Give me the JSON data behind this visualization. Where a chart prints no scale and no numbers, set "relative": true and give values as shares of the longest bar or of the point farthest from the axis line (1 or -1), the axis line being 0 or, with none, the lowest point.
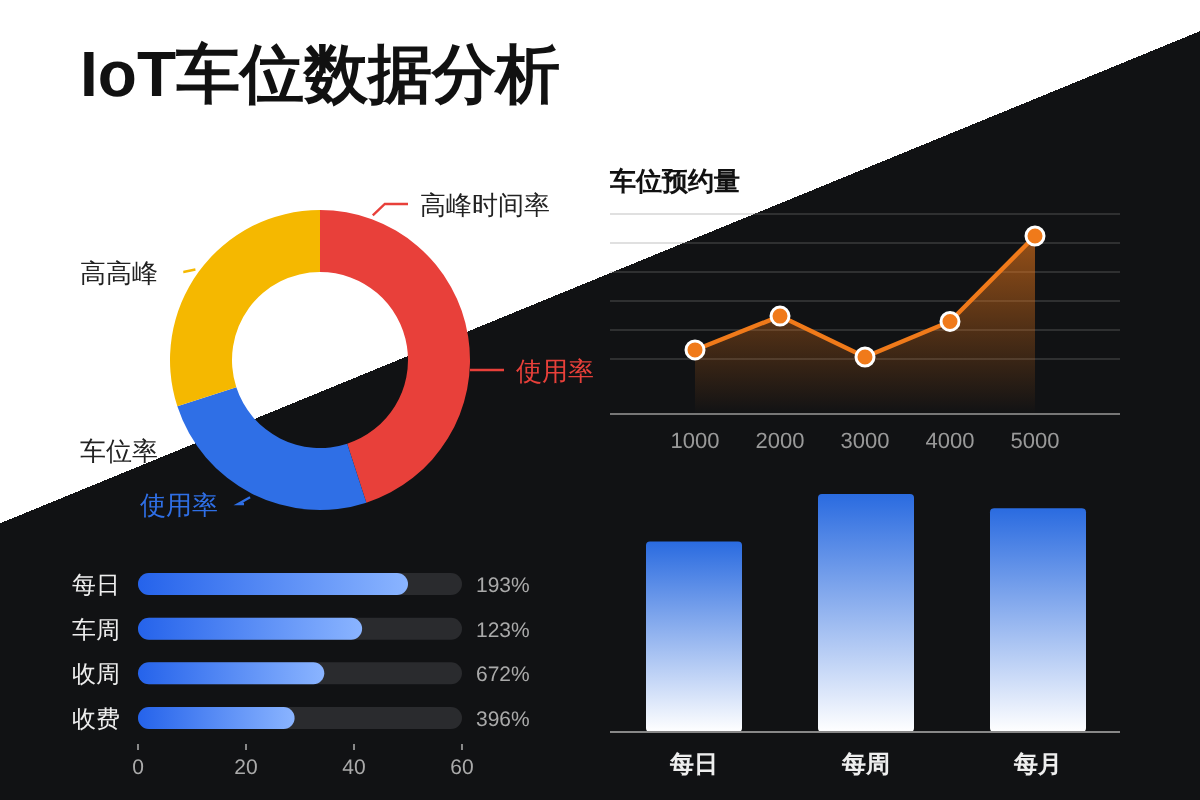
{
  "chart_data": [
    {
      "type": "donut",
      "title": "IoT车位数据分析",
      "categories": [
        "高峰时间率",
        "使用率",
        "高高峰"
      ],
      "values": [
        45,
        25,
        30
      ],
      "colors": [
        "#e8403a",
        "#2f6fe6",
        "#f5b800"
      ],
      "annotations": [
        "使用率",
        "车位率"
      ]
    },
    {
      "type": "area",
      "title": "车位预约量",
      "relative": true,
      "x": [
        1000,
        2000,
        3000,
        4000,
        5000
      ],
      "xlim": [
        0,
        6000
      ],
      "xticks": [
        1000,
        2000,
        3000,
        4000,
        5000
      ],
      "grid": "y",
      "marker": "circle",
      "series": [
        {
          "color": "#f07a1a",
          "values": [
            0.36,
            0.55,
            0.32,
            0.52,
            1
          ]
        }
      ]
    },
    {
      "type": "bar",
      "orientation": "horizontal",
      "categories": [
        "每日",
        "车周",
        "收周",
        "收费"
      ],
      "values": [
        50,
        41.5,
        34.5,
        29
      ],
      "color": "#3b82f6",
      "xlim": [
        0,
        60
      ],
      "xticks": [
        0,
        20,
        40,
        60
      ],
      "annotations": [
        "193%",
        "123%",
        "672%",
        "396%"
      ]
    },
    {
      "type": "bar",
      "relative": true,
      "categories": [
        "每日",
        "每周",
        "每月"
      ],
      "values": [
        0.8,
        1,
        0.94
      ],
      "color": "#2a6be0"
    }
  ]
}
